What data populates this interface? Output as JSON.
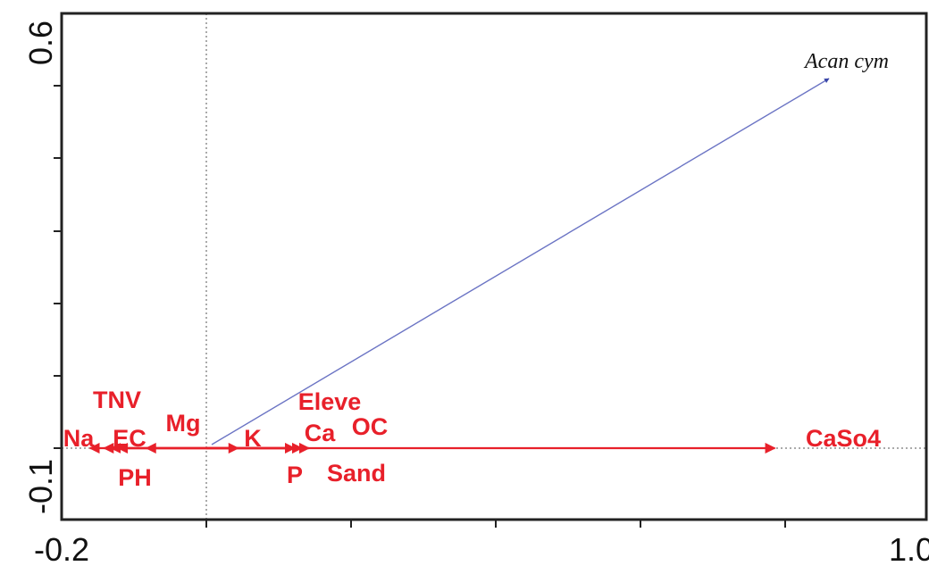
{
  "chart_data": {
    "type": "biplot",
    "xlim": [
      -0.2,
      1.0
    ],
    "ylim": [
      -0.1,
      0.6
    ],
    "x_tick_labels": [
      "-0.2",
      "1.0"
    ],
    "y_tick_labels": [
      "0.6",
      "-0.1"
    ],
    "grid": false,
    "colors": {
      "env": "#e8202a",
      "species": "#6b74c4",
      "axis": "#111111"
    },
    "species": [
      {
        "label": "Acan cym",
        "x": 0.91,
        "y": 0.41
      }
    ],
    "environmental_vectors": [
      {
        "label": "Na",
        "x": -0.16
      },
      {
        "label": "EC",
        "x": -0.14
      },
      {
        "label": "PH",
        "x": -0.13
      },
      {
        "label": "TNV",
        "x": -0.12
      },
      {
        "label": "Mg",
        "x": -0.08
      },
      {
        "label": "K",
        "x": 0.05
      },
      {
        "label": "P",
        "x": 0.13
      },
      {
        "label": "Sand",
        "x": 0.14
      },
      {
        "label": "Ca",
        "x": 0.15
      },
      {
        "label": "OC",
        "x": 0.15
      },
      {
        "label": "Eleve",
        "x": 0.14
      },
      {
        "label": "CaSo4",
        "x": 0.81
      }
    ]
  }
}
